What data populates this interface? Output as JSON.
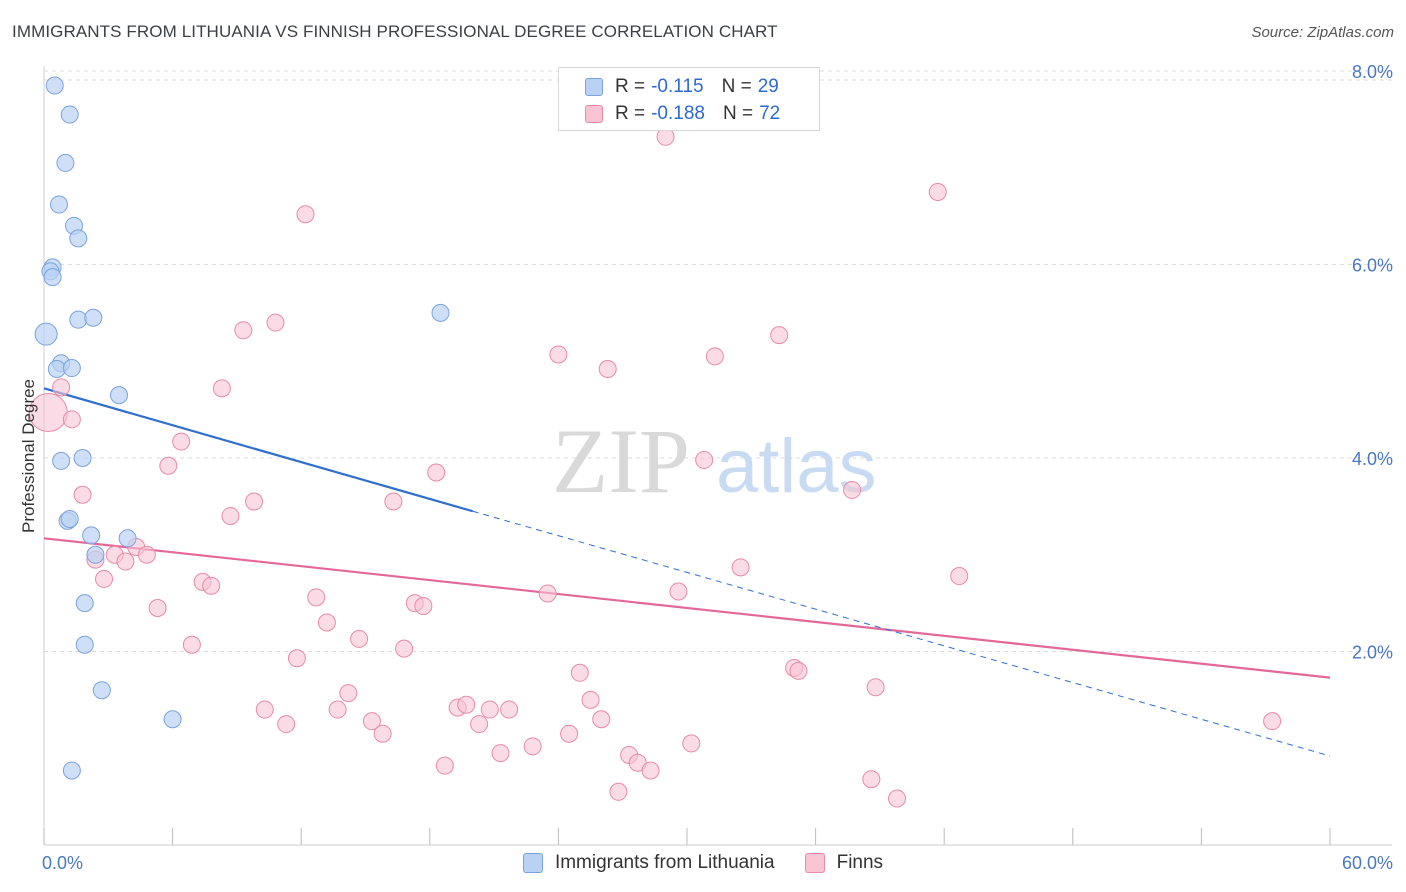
{
  "title": "IMMIGRANTS FROM LITHUANIA VS FINNISH PROFESSIONAL DEGREE CORRELATION CHART",
  "source": "Source: ZipAtlas.com",
  "colors": {
    "blue_fill": "#b9d2f3",
    "blue_stroke": "#7aa3dd",
    "blue_line": "#2f6fd0",
    "pink_fill": "#f8c3d3",
    "pink_stroke": "#e88ba7",
    "pink_line": "#e4679a",
    "tick_text": "#4a78c2",
    "grid": "#dddddd"
  },
  "legend": {
    "rows": [
      {
        "r_label": "R =",
        "r_value": "-0.115",
        "n_label": "N =",
        "n_value": "29"
      },
      {
        "r_label": "R =",
        "r_value": "-0.188",
        "n_label": "N =",
        "n_value": "72"
      }
    ]
  },
  "bottom_legend": [
    "Immigrants from Lithuania",
    "Finns"
  ],
  "chart_data": {
    "type": "scatter",
    "title": "IMMIGRANTS FROM LITHUANIA VS FINNISH PROFESSIONAL DEGREE CORRELATION CHART",
    "xlabel": "",
    "ylabel": "Professional Degree",
    "xlim": [
      0,
      60
    ],
    "ylim": [
      0,
      8.3
    ],
    "x_tick_labels": [
      "0.0%",
      "60.0%"
    ],
    "y_ticks": [
      2,
      4,
      6,
      8
    ],
    "y_tick_labels": [
      "2.0%",
      "4.0%",
      "6.0%",
      "8.0%"
    ],
    "watermark": {
      "zip": "ZIP",
      "atlas": "atlas"
    },
    "series": [
      {
        "name": "Immigrants from Lithuania",
        "r": -0.115,
        "n": 29,
        "points": [
          [
            0.5,
            7.85
          ],
          [
            1.2,
            7.55
          ],
          [
            1.0,
            7.05
          ],
          [
            0.7,
            6.62
          ],
          [
            1.4,
            6.4
          ],
          [
            1.6,
            6.27
          ],
          [
            0.4,
            5.97
          ],
          [
            0.3,
            5.93
          ],
          [
            0.4,
            5.87
          ],
          [
            1.6,
            5.43
          ],
          [
            2.3,
            5.45
          ],
          [
            0.1,
            5.28
          ],
          [
            0.8,
            4.98
          ],
          [
            0.6,
            4.92
          ],
          [
            1.3,
            4.93
          ],
          [
            3.5,
            4.65
          ],
          [
            0.8,
            3.97
          ],
          [
            1.8,
            4.0
          ],
          [
            1.1,
            3.35
          ],
          [
            1.2,
            3.37
          ],
          [
            2.2,
            3.2
          ],
          [
            3.9,
            3.17
          ],
          [
            2.4,
            3.0
          ],
          [
            1.9,
            2.5
          ],
          [
            1.9,
            2.07
          ],
          [
            2.7,
            1.6
          ],
          [
            6.0,
            1.3
          ],
          [
            1.3,
            0.77
          ],
          [
            18.5,
            5.5
          ]
        ],
        "trend": {
          "x1": 0,
          "y1": 4.72,
          "x2": 20,
          "y2": 3.45,
          "dashed_to_x": 60,
          "dashed_to_y": 0.92
        }
      },
      {
        "name": "Finns",
        "r": -0.188,
        "n": 72,
        "points": [
          [
            0.2,
            4.47
          ],
          [
            0.8,
            4.73
          ],
          [
            1.3,
            4.4
          ],
          [
            1.8,
            3.62
          ],
          [
            2.4,
            2.95
          ],
          [
            2.8,
            2.75
          ],
          [
            3.3,
            3.0
          ],
          [
            3.8,
            2.93
          ],
          [
            4.3,
            3.08
          ],
          [
            4.8,
            3.0
          ],
          [
            5.3,
            2.45
          ],
          [
            5.8,
            3.92
          ],
          [
            6.4,
            4.17
          ],
          [
            6.9,
            2.07
          ],
          [
            7.4,
            2.72
          ],
          [
            7.8,
            2.68
          ],
          [
            8.3,
            4.72
          ],
          [
            8.7,
            3.4
          ],
          [
            9.3,
            5.32
          ],
          [
            9.8,
            3.55
          ],
          [
            10.3,
            1.4
          ],
          [
            10.8,
            5.4
          ],
          [
            11.3,
            1.25
          ],
          [
            11.8,
            1.93
          ],
          [
            12.2,
            6.52
          ],
          [
            12.7,
            2.56
          ],
          [
            13.2,
            2.3
          ],
          [
            13.7,
            1.4
          ],
          [
            14.2,
            1.57
          ],
          [
            14.7,
            2.13
          ],
          [
            15.3,
            1.28
          ],
          [
            15.8,
            1.15
          ],
          [
            16.3,
            3.55
          ],
          [
            16.8,
            2.03
          ],
          [
            17.3,
            2.5
          ],
          [
            17.7,
            2.47
          ],
          [
            18.3,
            3.85
          ],
          [
            18.7,
            0.82
          ],
          [
            19.3,
            1.42
          ],
          [
            19.7,
            1.45
          ],
          [
            20.3,
            1.25
          ],
          [
            20.8,
            1.4
          ],
          [
            21.3,
            0.95
          ],
          [
            21.7,
            1.4
          ],
          [
            22.8,
            1.02
          ],
          [
            23.5,
            2.6
          ],
          [
            24.0,
            5.07
          ],
          [
            24.5,
            1.15
          ],
          [
            25.0,
            1.78
          ],
          [
            25.5,
            1.5
          ],
          [
            26.0,
            1.3
          ],
          [
            26.3,
            4.92
          ],
          [
            26.8,
            0.55
          ],
          [
            27.3,
            0.93
          ],
          [
            27.7,
            0.85
          ],
          [
            28.3,
            0.77
          ],
          [
            29.0,
            7.32
          ],
          [
            29.6,
            2.62
          ],
          [
            30.2,
            1.05
          ],
          [
            30.8,
            3.98
          ],
          [
            31.3,
            5.05
          ],
          [
            32.5,
            2.87
          ],
          [
            34.3,
            5.27
          ],
          [
            35.0,
            1.83
          ],
          [
            35.2,
            1.8
          ],
          [
            37.7,
            3.67
          ],
          [
            38.6,
            0.68
          ],
          [
            38.8,
            1.63
          ],
          [
            39.8,
            0.48
          ],
          [
            41.7,
            6.75
          ],
          [
            42.7,
            2.78
          ],
          [
            57.3,
            1.28
          ]
        ],
        "trend": {
          "x1": 0,
          "y1": 3.17,
          "x2": 60,
          "y2": 1.73
        }
      }
    ]
  }
}
